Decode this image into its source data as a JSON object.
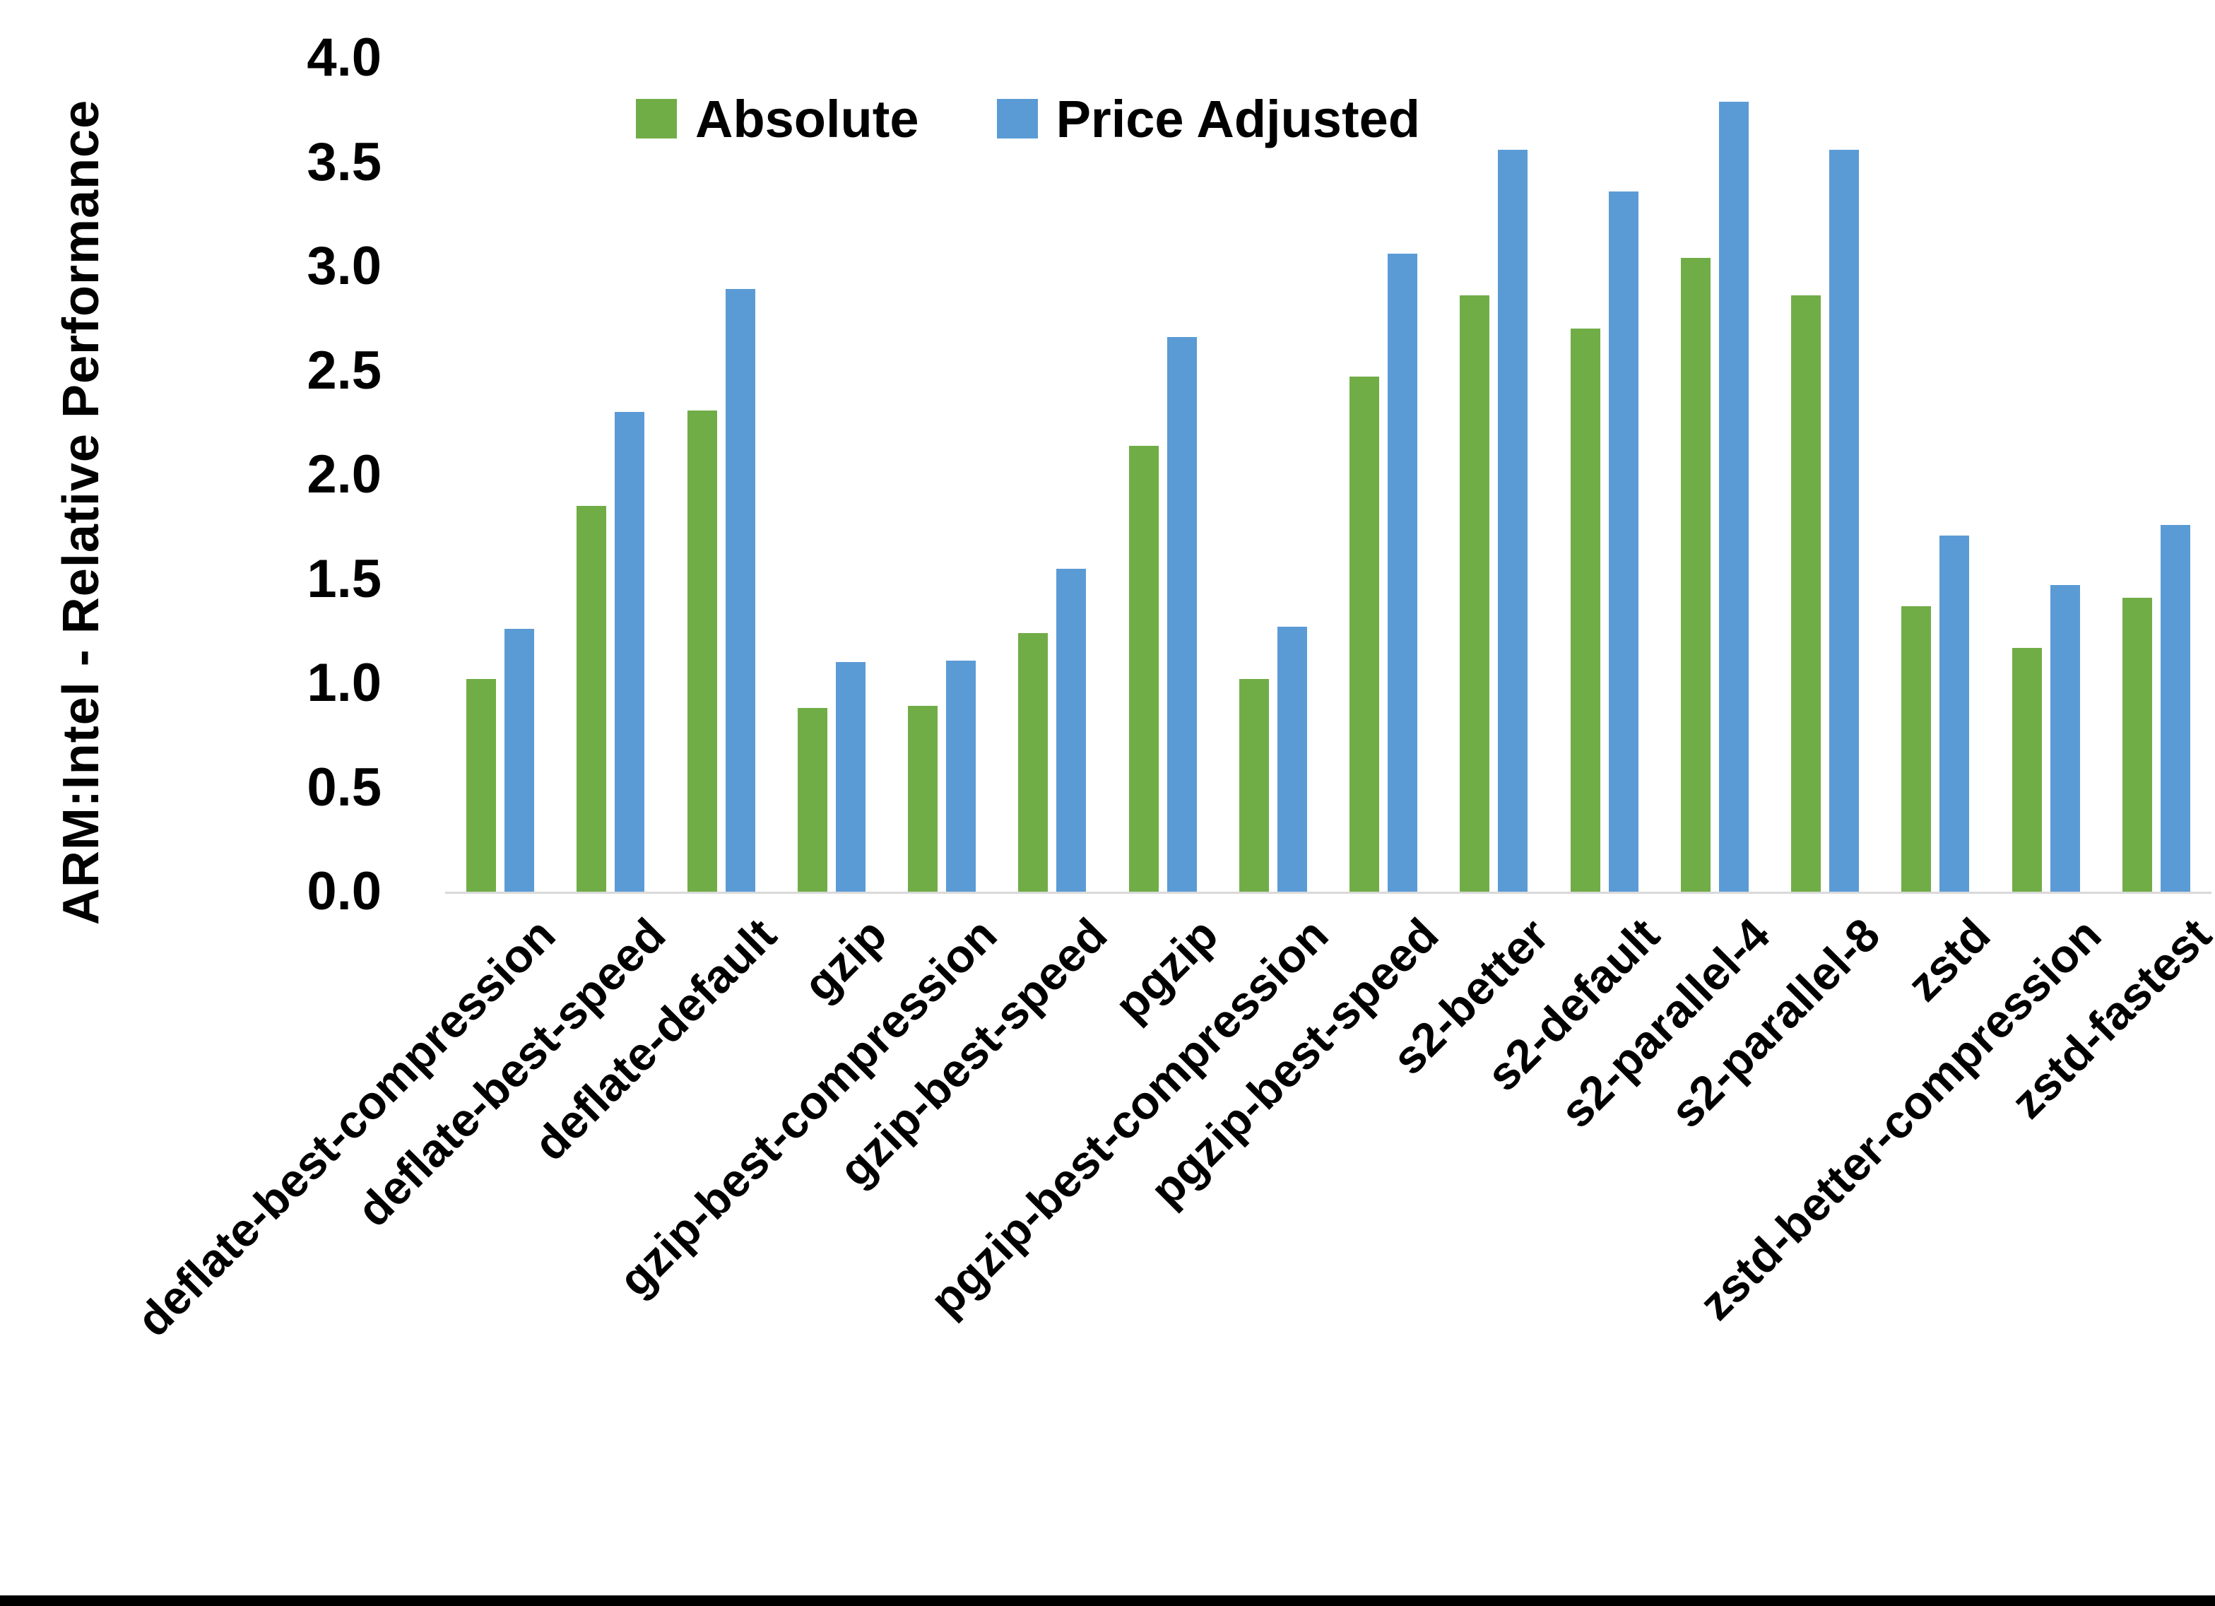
{
  "chart_data": {
    "type": "bar",
    "title": "",
    "ylabel": "ARM:Intel - Relative Performance",
    "xlabel": "",
    "ylim": [
      0,
      4.0
    ],
    "ytick_step": 0.5,
    "yticks": [
      "4.0",
      "3.5",
      "3.0",
      "2.5",
      "2.0",
      "1.5",
      "1.0",
      "0.5",
      "0.0"
    ],
    "grid": false,
    "legend_position": "top",
    "categories": [
      "deflate-best-compression",
      "deflate-best-speed",
      "deflate-default",
      "gzip",
      "gzip-best-compression",
      "gzip-best-speed",
      "pgzip",
      "pgzip-best-compression",
      "pgzip-best-speed",
      "s2-better",
      "s2-default",
      "s2-parallel-4",
      "s2-parallel-8",
      "zstd",
      "zstd-better-compression",
      "zstd-fastest"
    ],
    "series": [
      {
        "name": "Absolute",
        "color": "#70AD47",
        "values": [
          1.02,
          1.85,
          2.31,
          0.88,
          0.89,
          1.24,
          2.14,
          1.02,
          2.47,
          2.86,
          2.7,
          3.04,
          2.86,
          1.37,
          1.17,
          1.41
        ]
      },
      {
        "name": "Price Adjusted",
        "color": "#5B9BD5",
        "values": [
          1.26,
          2.3,
          2.89,
          1.1,
          1.11,
          1.55,
          2.66,
          1.27,
          3.06,
          3.56,
          3.36,
          3.79,
          3.56,
          1.71,
          1.47,
          1.76
        ]
      }
    ]
  }
}
